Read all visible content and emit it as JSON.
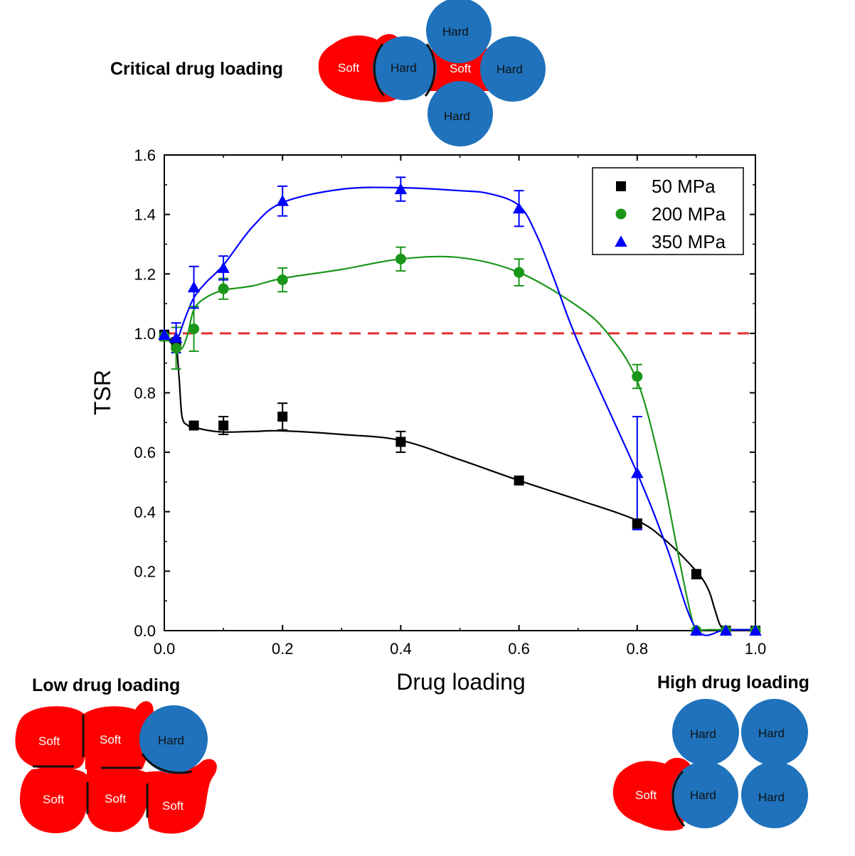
{
  "captions": {
    "critical": "Critical drug loading",
    "low": "Low drug loading",
    "high": "High drug loading"
  },
  "particle_labels": {
    "soft": "Soft",
    "hard": "Hard"
  },
  "colors": {
    "soft": "#ff0000",
    "hard": "#1f72bb",
    "reference_line": "#e62e2e",
    "series_50": "#000000",
    "series_200": "#1a961a",
    "series_350": "#0000ff"
  },
  "chart_data": {
    "type": "line",
    "title": "",
    "xlabel": "Drug loading",
    "ylabel": "TSR",
    "xlim": [
      0.0,
      1.0
    ],
    "ylim": [
      0.0,
      1.6
    ],
    "x_ticks": [
      "0.0",
      "0.2",
      "0.4",
      "0.6",
      "0.8",
      "1.0"
    ],
    "y_ticks": [
      "0.0",
      "0.2",
      "0.4",
      "0.6",
      "0.8",
      "1.0",
      "1.2",
      "1.4",
      "1.6"
    ],
    "grid": false,
    "legend_position": "top-right",
    "reference_line": {
      "y": 1.0,
      "style": "dashed"
    },
    "series": [
      {
        "name": "50 MPa",
        "marker": "square",
        "color": "#000000",
        "x": [
          0.0,
          0.02,
          0.05,
          0.1,
          0.2,
          0.4,
          0.6,
          0.8,
          0.9,
          0.95,
          1.0
        ],
        "y": [
          0.995,
          0.97,
          0.69,
          0.69,
          0.72,
          0.635,
          0.505,
          0.36,
          0.19,
          0.0,
          0.0
        ],
        "err": [
          0.01,
          0.015,
          0.01,
          0.03,
          0.045,
          0.035,
          0.01,
          0.015,
          0.015,
          0.0,
          0.0
        ]
      },
      {
        "name": "200 MPa",
        "marker": "circle",
        "color": "#1a961a",
        "x": [
          0.0,
          0.02,
          0.05,
          0.1,
          0.2,
          0.4,
          0.6,
          0.8,
          0.9,
          0.95,
          1.0
        ],
        "y": [
          0.99,
          0.95,
          1.015,
          1.15,
          1.18,
          1.25,
          1.205,
          0.855,
          0.0,
          0.0,
          0.0
        ],
        "err": [
          0.015,
          0.07,
          0.075,
          0.035,
          0.04,
          0.04,
          0.045,
          0.04,
          0.0,
          0.0,
          0.0
        ]
      },
      {
        "name": "350 MPa",
        "marker": "triangle",
        "color": "#0000ff",
        "x": [
          0.0,
          0.02,
          0.05,
          0.1,
          0.2,
          0.4,
          0.6,
          0.8,
          0.9,
          0.95,
          1.0
        ],
        "y": [
          0.995,
          0.985,
          1.155,
          1.22,
          1.445,
          1.485,
          1.42,
          0.53,
          0.0,
          0.0,
          0.0
        ],
        "err": [
          0.015,
          0.05,
          0.07,
          0.04,
          0.05,
          0.04,
          0.06,
          0.19,
          0.0,
          0.0,
          0.0
        ]
      }
    ],
    "fits": [
      {
        "series": "50 MPa",
        "x": [
          0.0,
          0.01,
          0.02,
          0.025,
          0.03,
          0.04,
          0.05,
          0.07,
          0.1,
          0.15,
          0.2,
          0.3,
          0.4,
          0.5,
          0.6,
          0.7,
          0.8,
          0.85,
          0.9,
          0.92,
          0.93,
          0.94,
          0.95,
          0.97,
          1.0
        ],
        "y": [
          0.99,
          0.98,
          0.96,
          0.85,
          0.72,
          0.69,
          0.685,
          0.675,
          0.668,
          0.67,
          0.672,
          0.66,
          0.64,
          0.575,
          0.505,
          0.44,
          0.37,
          0.3,
          0.2,
          0.14,
          0.08,
          0.02,
          0.005,
          0.003,
          0.003
        ]
      },
      {
        "series": "200 MPa",
        "x": [
          0.0,
          0.01,
          0.02,
          0.03,
          0.04,
          0.05,
          0.07,
          0.1,
          0.15,
          0.2,
          0.3,
          0.4,
          0.5,
          0.6,
          0.7,
          0.75,
          0.8,
          0.84,
          0.87,
          0.89,
          0.9,
          0.92,
          1.0
        ],
        "y": [
          0.99,
          0.97,
          0.95,
          0.95,
          1.0,
          1.08,
          1.12,
          1.145,
          1.16,
          1.185,
          1.215,
          1.25,
          1.255,
          1.205,
          1.09,
          1.0,
          0.84,
          0.55,
          0.25,
          0.06,
          0.005,
          0.003,
          0.003
        ]
      },
      {
        "series": "350 MPa",
        "x": [
          0.0,
          0.01,
          0.02,
          0.035,
          0.05,
          0.07,
          0.1,
          0.15,
          0.2,
          0.3,
          0.4,
          0.5,
          0.55,
          0.6,
          0.63,
          0.66,
          0.7,
          0.8,
          0.85,
          0.9,
          0.95,
          1.0
        ],
        "y": [
          0.99,
          0.975,
          0.97,
          1.05,
          1.12,
          1.17,
          1.23,
          1.36,
          1.44,
          1.485,
          1.49,
          1.48,
          1.47,
          1.43,
          1.33,
          1.18,
          0.97,
          0.53,
          0.28,
          0.005,
          0.003,
          0.003
        ]
      }
    ]
  }
}
